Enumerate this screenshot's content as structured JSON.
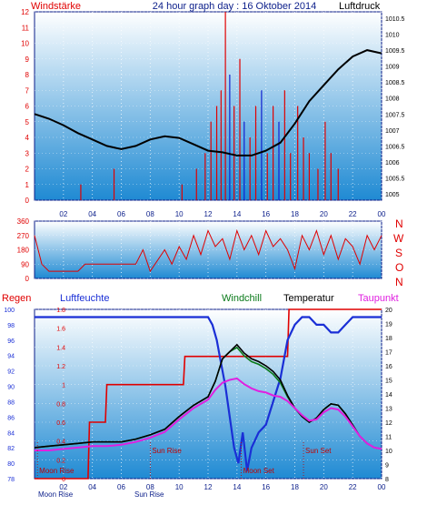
{
  "header": {
    "left": "Windstärke",
    "title": "24 hour graph day : 16 Oktober 2014",
    "right": "Luftdruck"
  },
  "colors": {
    "frame": "#0b1e8a",
    "wind": "#e00000",
    "gust_blue": "#1020d0",
    "pressure": "#000000",
    "humidity": "#1a2fd6",
    "rain": "#e00000",
    "windchill": "#0a7a1a",
    "temperature": "#000000",
    "dewpoint": "#e020e0",
    "sun_moon": "#c00000",
    "bg_top": "#ffffff",
    "bg_bottom": "#1f8ad3"
  },
  "chart_data": [
    {
      "type": "line",
      "title": "24 hour graph day : 16 Oktober 2014",
      "x_ticks": [
        "02",
        "04",
        "06",
        "08",
        "10",
        "12",
        "14",
        "16",
        "18",
        "20",
        "22",
        "00"
      ],
      "xlim": [
        0,
        24
      ],
      "left_axis": {
        "label": "Windstärke",
        "ticks": [
          "0",
          "1",
          "2",
          "3",
          "4",
          "5",
          "6",
          "7",
          "8",
          "9",
          "10",
          "11",
          "12"
        ],
        "ylim": [
          0,
          12
        ]
      },
      "right_axis": {
        "label": "Luftdruck",
        "ticks": [
          "1005",
          "1005.5",
          "1006",
          "1006.5",
          "1007",
          "1007.5",
          "1008",
          "1008.5",
          "1009",
          "1009.5",
          "1010",
          "1010.5"
        ],
        "ylim": [
          1004.8,
          1010.7
        ]
      },
      "series": [
        {
          "name": "Luftdruck",
          "axis": "right",
          "x": [
            0,
            1,
            2,
            3,
            4,
            5,
            6,
            7,
            8,
            9,
            10,
            11,
            12,
            13,
            14,
            15,
            16,
            17,
            18,
            19,
            20,
            21,
            22,
            23,
            24
          ],
          "values": [
            1007.5,
            1007.35,
            1007.15,
            1006.9,
            1006.7,
            1006.5,
            1006.4,
            1006.5,
            1006.7,
            1006.8,
            1006.75,
            1006.55,
            1006.35,
            1006.3,
            1006.2,
            1006.2,
            1006.35,
            1006.6,
            1007.2,
            1007.9,
            1008.4,
            1008.9,
            1009.3,
            1009.5,
            1009.4
          ]
        },
        {
          "name": "Windstärke",
          "axis": "left",
          "kind": "bars",
          "x": [
            3.2,
            5.5,
            10.2,
            11.2,
            11.8,
            12.2,
            12.6,
            12.9,
            13.2,
            13.5,
            13.8,
            14.2,
            14.5,
            14.9,
            15.3,
            15.7,
            16.1,
            16.5,
            16.9,
            17.3,
            17.7,
            18.2,
            18.6,
            19.0,
            19.6,
            20.1,
            20.5,
            21.0
          ],
          "values": [
            1,
            2,
            1,
            2,
            3,
            5,
            6,
            7,
            12,
            8,
            6,
            9,
            5,
            4,
            6,
            7,
            3,
            6,
            5,
            7,
            3,
            6,
            4,
            3,
            2,
            5,
            3,
            2
          ]
        }
      ]
    },
    {
      "type": "line",
      "title": "",
      "x_ticks": [
        "02",
        "04",
        "06",
        "08",
        "10",
        "12",
        "14",
        "16",
        "18",
        "20",
        "22",
        "00"
      ],
      "xlim": [
        0,
        24
      ],
      "left_axis": {
        "label": "",
        "ticks": [
          "0",
          "90",
          "180",
          "270",
          "360"
        ],
        "ylim": [
          0,
          360
        ]
      },
      "right_axis": {
        "label": "",
        "ticks": [
          "N",
          "W",
          "S",
          "O",
          "N"
        ]
      },
      "series": [
        {
          "name": "",
          "x": [
            0,
            0.5,
            1,
            1.5,
            2,
            2.5,
            3,
            3.5,
            4,
            5,
            6,
            7,
            7.5,
            8,
            9,
            9.5,
            10,
            10.5,
            11,
            11.5,
            12,
            12.5,
            13,
            13.5,
            14,
            14.5,
            15,
            15.5,
            16,
            16.5,
            17,
            17.5,
            18,
            18.5,
            19,
            19.5,
            20,
            20.5,
            21,
            21.5,
            22,
            22.5,
            23,
            23.5,
            24
          ],
          "values": [
            270,
            90,
            45,
            45,
            45,
            45,
            45,
            90,
            90,
            90,
            90,
            90,
            180,
            45,
            180,
            90,
            200,
            120,
            270,
            150,
            300,
            200,
            250,
            120,
            300,
            180,
            270,
            150,
            300,
            200,
            250,
            180,
            60,
            270,
            180,
            300,
            150,
            270,
            120,
            250,
            200,
            90,
            270,
            180,
            270
          ]
        }
      ]
    },
    {
      "type": "line",
      "title": "",
      "x_ticks": [
        "02",
        "04",
        "06",
        "08",
        "10",
        "12",
        "14",
        "16",
        "18",
        "20",
        "22",
        "00"
      ],
      "xlim": [
        0,
        24
      ],
      "axes": {
        "regen": {
          "label": "Regen",
          "ticks": [
            "0",
            "0.2",
            "0.4",
            "0.6",
            "0.8",
            "1",
            "1.2",
            "1.4",
            "1.6",
            "1.8"
          ],
          "ylim": [
            0,
            1.8
          ]
        },
        "luftfeuchte": {
          "label": "Luftfeuchte",
          "ticks": [
            "78",
            "80",
            "82",
            "84",
            "86",
            "88",
            "90",
            "92",
            "94",
            "96",
            "98",
            "100"
          ],
          "ylim": [
            78,
            100
          ]
        },
        "temperatur": {
          "label": "Temperatur",
          "ticks": [
            "8",
            "9",
            "10",
            "11",
            "12",
            "13",
            "14",
            "15",
            "16",
            "17",
            "18",
            "19",
            "20"
          ],
          "ylim": [
            8,
            20
          ]
        }
      },
      "legend": [
        "Windchill",
        "Temperatur",
        "Taupunkt"
      ],
      "series": [
        {
          "name": "Regen",
          "axis": "regen",
          "step": true,
          "x": [
            0,
            3.7,
            3.8,
            4.9,
            5.0,
            10.3,
            10.4,
            17.5,
            17.6,
            24
          ],
          "values": [
            0,
            0,
            0.6,
            0.6,
            1.0,
            1.0,
            1.3,
            1.3,
            2.0,
            2.0
          ]
        },
        {
          "name": "Luftfeuchte",
          "axis": "luftfeuchte",
          "x": [
            0,
            2,
            4,
            6,
            8,
            10,
            11,
            12,
            12.3,
            12.6,
            12.9,
            13.2,
            13.5,
            13.8,
            14.1,
            14.4,
            14.7,
            15,
            15.5,
            16,
            16.5,
            17,
            17.5,
            18,
            18.5,
            19,
            19.5,
            20,
            20.5,
            21,
            21.5,
            22,
            23,
            24
          ],
          "values": [
            99,
            99,
            99,
            99,
            99,
            99,
            99,
            99,
            98,
            96,
            93,
            90,
            86,
            82,
            80,
            84,
            79,
            82,
            84,
            85,
            88,
            91,
            96,
            98,
            99,
            99,
            98,
            98,
            97,
            97,
            98,
            99,
            99,
            99
          ]
        },
        {
          "name": "Windchill",
          "axis": "temperatur",
          "x": [
            0,
            1,
            2,
            3,
            4,
            5,
            6,
            7,
            8,
            9,
            10,
            11,
            12,
            12.5,
            13,
            13.5,
            14,
            14.5,
            15,
            15.5,
            16,
            16.5,
            17,
            17.5,
            18,
            18.5,
            19,
            19.5,
            20,
            20.5,
            21,
            21.5,
            22,
            22.5,
            23,
            23.5,
            24
          ],
          "values": [
            10.2,
            10.3,
            10.4,
            10.5,
            10.6,
            10.6,
            10.6,
            10.8,
            11.1,
            11.5,
            12.4,
            13.2,
            13.8,
            14.9,
            16.5,
            17.0,
            17.3,
            16.7,
            16.3,
            16.1,
            15.8,
            15.4,
            14.8,
            13.8,
            13.0,
            12.4,
            12.0,
            12.3,
            12.9,
            13.3,
            13.2,
            12.6,
            11.8,
            11.0,
            10.5,
            10.2,
            10.1
          ]
        },
        {
          "name": "Temperatur",
          "axis": "temperatur",
          "x": [
            0,
            1,
            2,
            3,
            4,
            5,
            6,
            7,
            8,
            9,
            10,
            11,
            12,
            12.5,
            13,
            13.5,
            14,
            14.5,
            15,
            15.5,
            16,
            16.5,
            17,
            17.5,
            18,
            18.5,
            19,
            19.5,
            20,
            20.5,
            21,
            21.5,
            22,
            22.5,
            23,
            23.5,
            24
          ],
          "values": [
            10.2,
            10.3,
            10.4,
            10.5,
            10.6,
            10.6,
            10.6,
            10.8,
            11.1,
            11.5,
            12.4,
            13.2,
            13.8,
            14.9,
            16.5,
            17.0,
            17.5,
            16.9,
            16.5,
            16.3,
            16.0,
            15.6,
            15.0,
            13.9,
            13.0,
            12.4,
            12.0,
            12.3,
            12.9,
            13.3,
            13.2,
            12.6,
            11.8,
            11.0,
            10.5,
            10.2,
            10.1
          ]
        },
        {
          "name": "Taupunkt",
          "axis": "temperatur",
          "x": [
            0,
            1,
            2,
            3,
            4,
            5,
            6,
            7,
            8,
            9,
            10,
            11,
            12,
            12.5,
            13,
            13.5,
            14,
            14.5,
            15,
            15.5,
            16,
            16.5,
            17,
            17.5,
            18,
            18.5,
            19,
            19.5,
            20,
            20.5,
            21,
            21.5,
            22,
            22.5,
            23,
            23.5,
            24
          ],
          "values": [
            10.0,
            10.0,
            10.1,
            10.2,
            10.3,
            10.3,
            10.4,
            10.6,
            10.9,
            11.3,
            12.2,
            13.0,
            13.6,
            14.3,
            14.8,
            15.0,
            15.1,
            14.7,
            14.4,
            14.2,
            14.1,
            13.9,
            13.8,
            13.5,
            13.0,
            12.5,
            12.1,
            12.2,
            12.7,
            13.0,
            12.9,
            12.4,
            11.7,
            11.0,
            10.5,
            10.2,
            10.1
          ]
        }
      ],
      "annotations": [
        {
          "text": "Sun Rise",
          "x": 8.0
        },
        {
          "text": "Sun Set",
          "x": 18.6
        },
        {
          "text": "Moon Rise",
          "x": 0.2
        },
        {
          "text": "Moon Set",
          "x": 14.3
        }
      ],
      "x_labels_extra": [
        "Moon Rise",
        "Sun Rise",
        "Moon Set",
        "Sun Set"
      ]
    }
  ]
}
